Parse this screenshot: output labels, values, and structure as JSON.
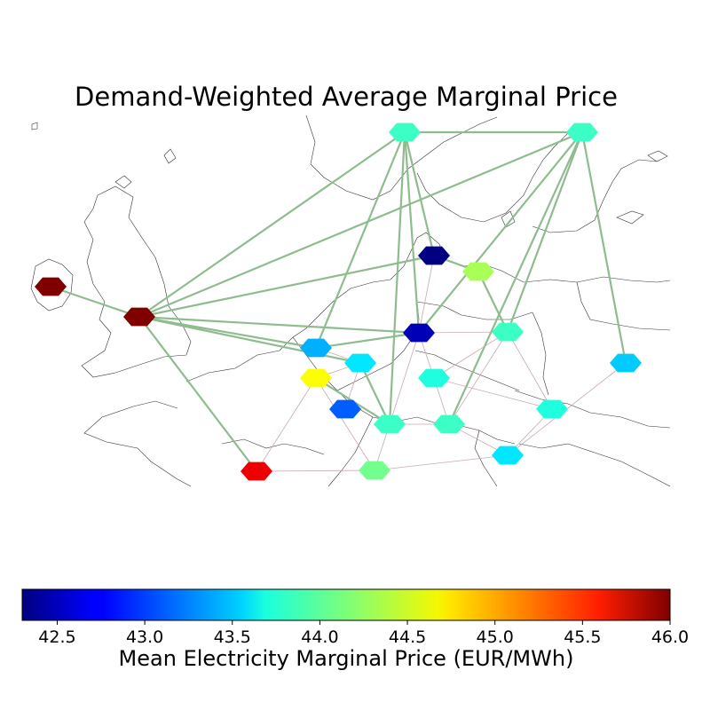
{
  "title": "Demand-Weighted Average Marginal Price",
  "colorbar": {
    "label": "Mean Electricity Marginal Price (EUR/MWh)",
    "min": 42.3,
    "max": 46.0,
    "ticks": [
      "42.5",
      "43.0",
      "43.5",
      "44.0",
      "44.5",
      "45.0",
      "45.5",
      "46.0"
    ],
    "tick_values": [
      42.5,
      43.0,
      43.5,
      44.0,
      44.5,
      45.0,
      45.5,
      46.0
    ]
  },
  "chart_data": {
    "type": "map-network",
    "nodes": [
      {
        "id": "n-ie",
        "price": 46.0
      },
      {
        "id": "n-gb",
        "price": 46.0
      },
      {
        "id": "n-no",
        "price": 43.9
      },
      {
        "id": "n-se",
        "price": 43.9
      },
      {
        "id": "n-dk",
        "price": 42.3
      },
      {
        "id": "n-dk2",
        "price": 44.3
      },
      {
        "id": "n-nl",
        "price": 43.4
      },
      {
        "id": "n-de",
        "price": 42.5
      },
      {
        "id": "n-pl",
        "price": 43.9
      },
      {
        "id": "n-lt",
        "price": 43.5
      },
      {
        "id": "n-be",
        "price": 43.6
      },
      {
        "id": "n-fr",
        "price": 44.6
      },
      {
        "id": "n-lu",
        "price": 43.1
      },
      {
        "id": "n-cz",
        "price": 43.8
      },
      {
        "id": "n-ch",
        "price": 43.9
      },
      {
        "id": "n-at",
        "price": 43.9
      },
      {
        "id": "n-sk",
        "price": 43.8
      },
      {
        "id": "n-es",
        "price": 45.6
      },
      {
        "id": "n-it",
        "price": 44.1
      },
      {
        "id": "n-hu",
        "price": 43.6
      }
    ],
    "links": [
      [
        "n-ie",
        "n-gb"
      ],
      [
        "n-gb",
        "n-no"
      ],
      [
        "n-gb",
        "n-dk"
      ],
      [
        "n-gb",
        "n-se"
      ],
      [
        "n-gb",
        "n-nl"
      ],
      [
        "n-gb",
        "n-de"
      ],
      [
        "n-gb",
        "n-es"
      ],
      [
        "n-gb",
        "n-be"
      ],
      [
        "n-no",
        "n-se"
      ],
      [
        "n-no",
        "n-dk"
      ],
      [
        "n-no",
        "n-nl"
      ],
      [
        "n-no",
        "n-de"
      ],
      [
        "n-no",
        "n-ch"
      ],
      [
        "n-se",
        "n-lt"
      ],
      [
        "n-se",
        "n-at"
      ],
      [
        "n-se",
        "n-pl"
      ],
      [
        "n-se",
        "n-de"
      ],
      [
        "n-dk",
        "n-dk2"
      ],
      [
        "n-dk2",
        "n-pl"
      ],
      [
        "n-nl",
        "n-de"
      ],
      [
        "n-nl",
        "n-be"
      ],
      [
        "n-be",
        "n-fr"
      ],
      [
        "n-be",
        "n-lu"
      ],
      [
        "n-be",
        "n-ch"
      ],
      [
        "n-de",
        "n-pl"
      ],
      [
        "n-de",
        "n-cz"
      ],
      [
        "n-de",
        "n-ch"
      ],
      [
        "n-pl",
        "n-cz"
      ],
      [
        "n-pl",
        "n-sk"
      ],
      [
        "n-pl",
        "n-at"
      ],
      [
        "n-cz",
        "n-at"
      ],
      [
        "n-cz",
        "n-sk"
      ],
      [
        "n-at",
        "n-ch"
      ],
      [
        "n-at",
        "n-hu"
      ],
      [
        "n-sk",
        "n-hu"
      ],
      [
        "n-ch",
        "n-it"
      ],
      [
        "n-ch",
        "n-fr"
      ],
      [
        "n-fr",
        "n-es"
      ],
      [
        "n-fr",
        "n-it"
      ],
      [
        "n-es",
        "n-it"
      ],
      [
        "n-it",
        "n-hu"
      ],
      [
        "n-lt",
        "n-hu"
      ],
      [
        "n-dk",
        "n-de"
      ]
    ]
  }
}
